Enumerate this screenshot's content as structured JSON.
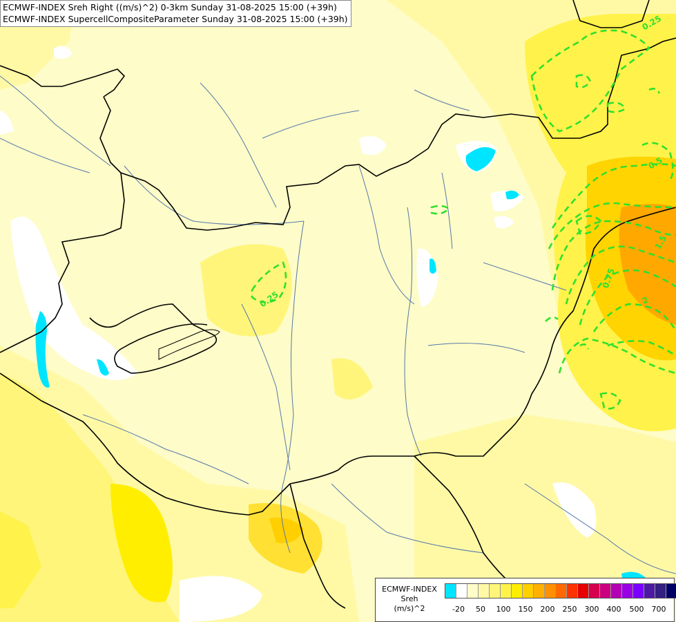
{
  "header": {
    "line1": "ECMWF-INDEX Sreh Right ((m/s)^2) 0-3km Sunday 31-08-2025 15:00 (+39h)",
    "line2": "ECMWF-INDEX SupercellCompositeParameter Sunday 31-08-2025 15:00 (+39h)"
  },
  "contour_labels": [
    {
      "text": "0.25",
      "id": "label-025-west"
    },
    {
      "text": "0.5",
      "id": "label-05-east"
    },
    {
      "text": "0.75",
      "id": "label-075-east"
    },
    {
      "text": "1.5",
      "id": "label-15-east"
    },
    {
      "text": "2",
      "id": "label-2-east"
    },
    {
      "text": "0.25",
      "id": "label-025-north"
    }
  ],
  "legend": {
    "title_line1": "ECMWF-INDEX",
    "title_line2": "Sreh",
    "title_line3": "(m/s)^2",
    "colors": [
      "#00e5ff",
      "#ffffff",
      "#fefcc8",
      "#fff9a6",
      "#fff57a",
      "#fff24a",
      "#ffee00",
      "#ffcf00",
      "#ffb000",
      "#ff9100",
      "#ff6a00",
      "#ff3300",
      "#e60000",
      "#d6004d",
      "#cc0080",
      "#b300b3",
      "#9900e6",
      "#7a00ff",
      "#4d1aa6",
      "#332080",
      "#000066"
    ],
    "ticks": [
      "-20",
      "50",
      "100",
      "150",
      "200",
      "250",
      "300",
      "400",
      "500",
      "700"
    ]
  },
  "colors": {
    "sreh_pale": "#fefcc8",
    "sreh_light": "#fff9a6",
    "sreh_mid": "#fff57a",
    "sreh_yellow": "#fff24a",
    "sreh_gold": "#ffd400",
    "sreh_orange": "#ffa800",
    "sreh_negative": "#00e5ff",
    "scp_contour": "#2ee02e",
    "border": "#000000",
    "river": "#5577aa"
  }
}
